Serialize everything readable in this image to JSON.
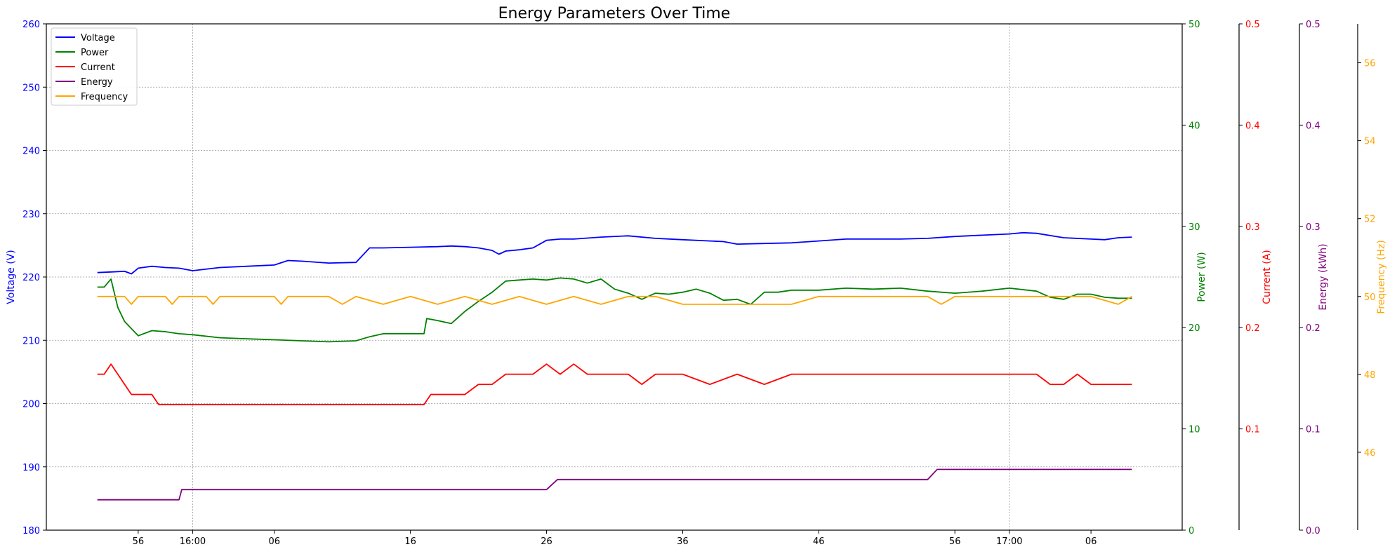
{
  "chart_data": {
    "type": "line",
    "title": "Energy Parameters Over Time",
    "x_tick_labels": [
      "56",
      "16:00",
      "06",
      "16",
      "26",
      "36",
      "46",
      "56",
      "17:00",
      "06"
    ],
    "x_tick_minutes": [
      -4,
      0,
      6,
      16,
      26,
      36,
      46,
      56,
      60,
      66
    ],
    "xlim": [
      -10.75,
      72.7
    ],
    "grid": true,
    "legend": {
      "position": "top-left",
      "entries": [
        "Voltage",
        "Power",
        "Current",
        "Energy",
        "Frequency"
      ]
    },
    "axes": [
      {
        "id": "voltage",
        "label": "Voltage (V)",
        "color": "#0000ff",
        "side": "left",
        "ylim": [
          180,
          260
        ],
        "ticks": [
          180,
          190,
          200,
          210,
          220,
          230,
          240,
          250,
          260
        ]
      },
      {
        "id": "power",
        "label": "Power (W)",
        "color": "#008000",
        "side": "right",
        "ylim": [
          0,
          50
        ],
        "ticks": [
          0,
          10,
          20,
          30,
          40,
          50
        ]
      },
      {
        "id": "current",
        "label": "Current (A)",
        "color": "#ff0000",
        "side": "right",
        "ylim": [
          0,
          0.5
        ],
        "ticks": [
          0.1,
          0.2,
          0.3,
          0.4,
          0.5
        ]
      },
      {
        "id": "energy",
        "label": "Energy (kWh)",
        "color": "#800080",
        "side": "right",
        "ylim": [
          0.0,
          0.5
        ],
        "ticks": [
          0.0,
          0.1,
          0.2,
          0.3,
          0.4,
          0.5
        ]
      },
      {
        "id": "frequency",
        "label": "Frequency (Hz)",
        "color": "#ffa500",
        "side": "right",
        "ylim": [
          44,
          57
        ],
        "ticks": [
          46,
          48,
          50,
          52,
          54,
          56
        ]
      }
    ],
    "series": [
      {
        "name": "Voltage",
        "axis": "voltage",
        "color": "#0000ff",
        "x": [
          -7,
          -6,
          -5,
          -4.5,
          -4,
          -3,
          -2,
          -1,
          0,
          2,
          4,
          6,
          7,
          8,
          10,
          12,
          13,
          14,
          16,
          18,
          19,
          20,
          21,
          22,
          22.5,
          23,
          24,
          25,
          26,
          27,
          28,
          30,
          32,
          34,
          36,
          38,
          39,
          40,
          42,
          44,
          46,
          48,
          50,
          52,
          54,
          56,
          58,
          60,
          61,
          62,
          64,
          66,
          67,
          68,
          69
        ],
        "y": [
          220.7,
          220.8,
          220.9,
          220.5,
          221.4,
          221.7,
          221.5,
          221.4,
          221.0,
          221.5,
          221.7,
          221.9,
          222.6,
          222.5,
          222.2,
          222.3,
          224.6,
          224.6,
          224.7,
          224.8,
          224.9,
          224.8,
          224.6,
          224.2,
          223.6,
          224.1,
          224.3,
          224.6,
          225.8,
          226.0,
          226.0,
          226.3,
          226.5,
          226.1,
          225.9,
          225.7,
          225.6,
          225.2,
          225.3,
          225.4,
          225.7,
          226.0,
          226.0,
          226.0,
          226.1,
          226.4,
          226.6,
          226.8,
          227.0,
          226.9,
          226.2,
          226.0,
          225.9,
          226.2,
          226.3
        ]
      },
      {
        "name": "Power",
        "axis": "power",
        "color": "#008000",
        "x": [
          -7,
          -6.5,
          -6,
          -5.5,
          -5,
          -4,
          -3,
          -2,
          -1,
          0,
          2,
          4,
          6,
          8,
          10,
          12,
          13,
          14,
          15,
          16,
          17,
          17.2,
          18,
          19,
          20,
          21,
          22,
          23,
          24,
          25,
          26,
          27,
          28,
          29,
          30,
          31,
          32,
          33,
          34,
          35,
          36,
          37,
          38,
          39,
          40,
          41,
          42,
          43,
          44,
          46,
          48,
          50,
          52,
          54,
          56,
          58,
          60,
          62,
          63,
          64,
          65,
          66,
          67,
          68,
          69
        ],
        "y": [
          24.0,
          24.0,
          24.8,
          22.0,
          20.6,
          19.2,
          19.7,
          19.6,
          19.4,
          19.3,
          19.0,
          18.9,
          18.8,
          18.7,
          18.6,
          18.7,
          19.1,
          19.4,
          19.4,
          19.4,
          19.4,
          20.9,
          20.7,
          20.4,
          21.6,
          22.6,
          23.5,
          24.6,
          24.7,
          24.8,
          24.7,
          24.9,
          24.8,
          24.4,
          24.8,
          23.8,
          23.4,
          22.8,
          23.4,
          23.3,
          23.5,
          23.8,
          23.4,
          22.7,
          22.8,
          22.3,
          23.5,
          23.5,
          23.7,
          23.7,
          23.9,
          23.8,
          23.9,
          23.6,
          23.4,
          23.6,
          23.9,
          23.6,
          23.0,
          22.8,
          23.3,
          23.3,
          23.0,
          22.9,
          22.9
        ]
      },
      {
        "name": "Current",
        "axis": "current",
        "color": "#ff0000",
        "x": [
          -7,
          -6.5,
          -6,
          -5.5,
          -5,
          -4.5,
          -3,
          -2.5,
          0,
          10,
          17,
          17.5,
          20,
          21,
          22,
          23,
          25,
          26,
          27,
          28,
          29,
          30,
          32,
          33,
          34,
          36,
          38,
          40,
          42,
          44,
          46,
          48,
          50,
          52,
          54,
          56,
          58,
          60,
          62,
          63,
          64,
          65,
          66,
          67,
          68,
          69
        ],
        "y": [
          0.154,
          0.154,
          0.164,
          0.154,
          0.144,
          0.134,
          0.134,
          0.124,
          0.124,
          0.124,
          0.124,
          0.134,
          0.134,
          0.144,
          0.144,
          0.154,
          0.154,
          0.164,
          0.154,
          0.164,
          0.154,
          0.154,
          0.154,
          0.144,
          0.154,
          0.154,
          0.144,
          0.154,
          0.144,
          0.154,
          0.154,
          0.154,
          0.154,
          0.154,
          0.154,
          0.154,
          0.154,
          0.154,
          0.154,
          0.144,
          0.144,
          0.154,
          0.144,
          0.144,
          0.144,
          0.144
        ]
      },
      {
        "name": "Energy",
        "axis": "energy",
        "color": "#800080",
        "x": [
          -7,
          -1,
          -0.8,
          26,
          26.8,
          54,
          54.7,
          69
        ],
        "y": [
          0.03,
          0.03,
          0.04,
          0.04,
          0.05,
          0.05,
          0.06,
          0.06
        ]
      },
      {
        "name": "Frequency",
        "axis": "frequency",
        "color": "#ffa500",
        "x": [
          -7,
          -5,
          -4.5,
          -4,
          -2,
          -1.5,
          -1,
          1,
          1.5,
          2,
          6,
          6.5,
          7,
          10,
          11,
          12,
          14,
          16,
          18,
          20,
          22,
          24,
          26,
          28,
          30,
          32,
          34,
          36,
          38,
          40,
          42,
          44,
          46,
          48,
          50,
          54,
          55,
          56,
          58,
          60,
          62,
          64,
          66,
          68,
          69
        ],
        "y": [
          50.0,
          50.0,
          49.8,
          50.0,
          50.0,
          49.8,
          50.0,
          50.0,
          49.8,
          50.0,
          50.0,
          49.8,
          50.0,
          50.0,
          49.8,
          50.0,
          49.8,
          50.0,
          49.8,
          50.0,
          49.8,
          50.0,
          49.8,
          50.0,
          49.8,
          50.0,
          50.0,
          49.8,
          49.8,
          49.8,
          49.8,
          49.8,
          50.0,
          50.0,
          50.0,
          50.0,
          49.8,
          50.0,
          50.0,
          50.0,
          50.0,
          50.0,
          50.0,
          49.8,
          50.0
        ]
      }
    ]
  }
}
